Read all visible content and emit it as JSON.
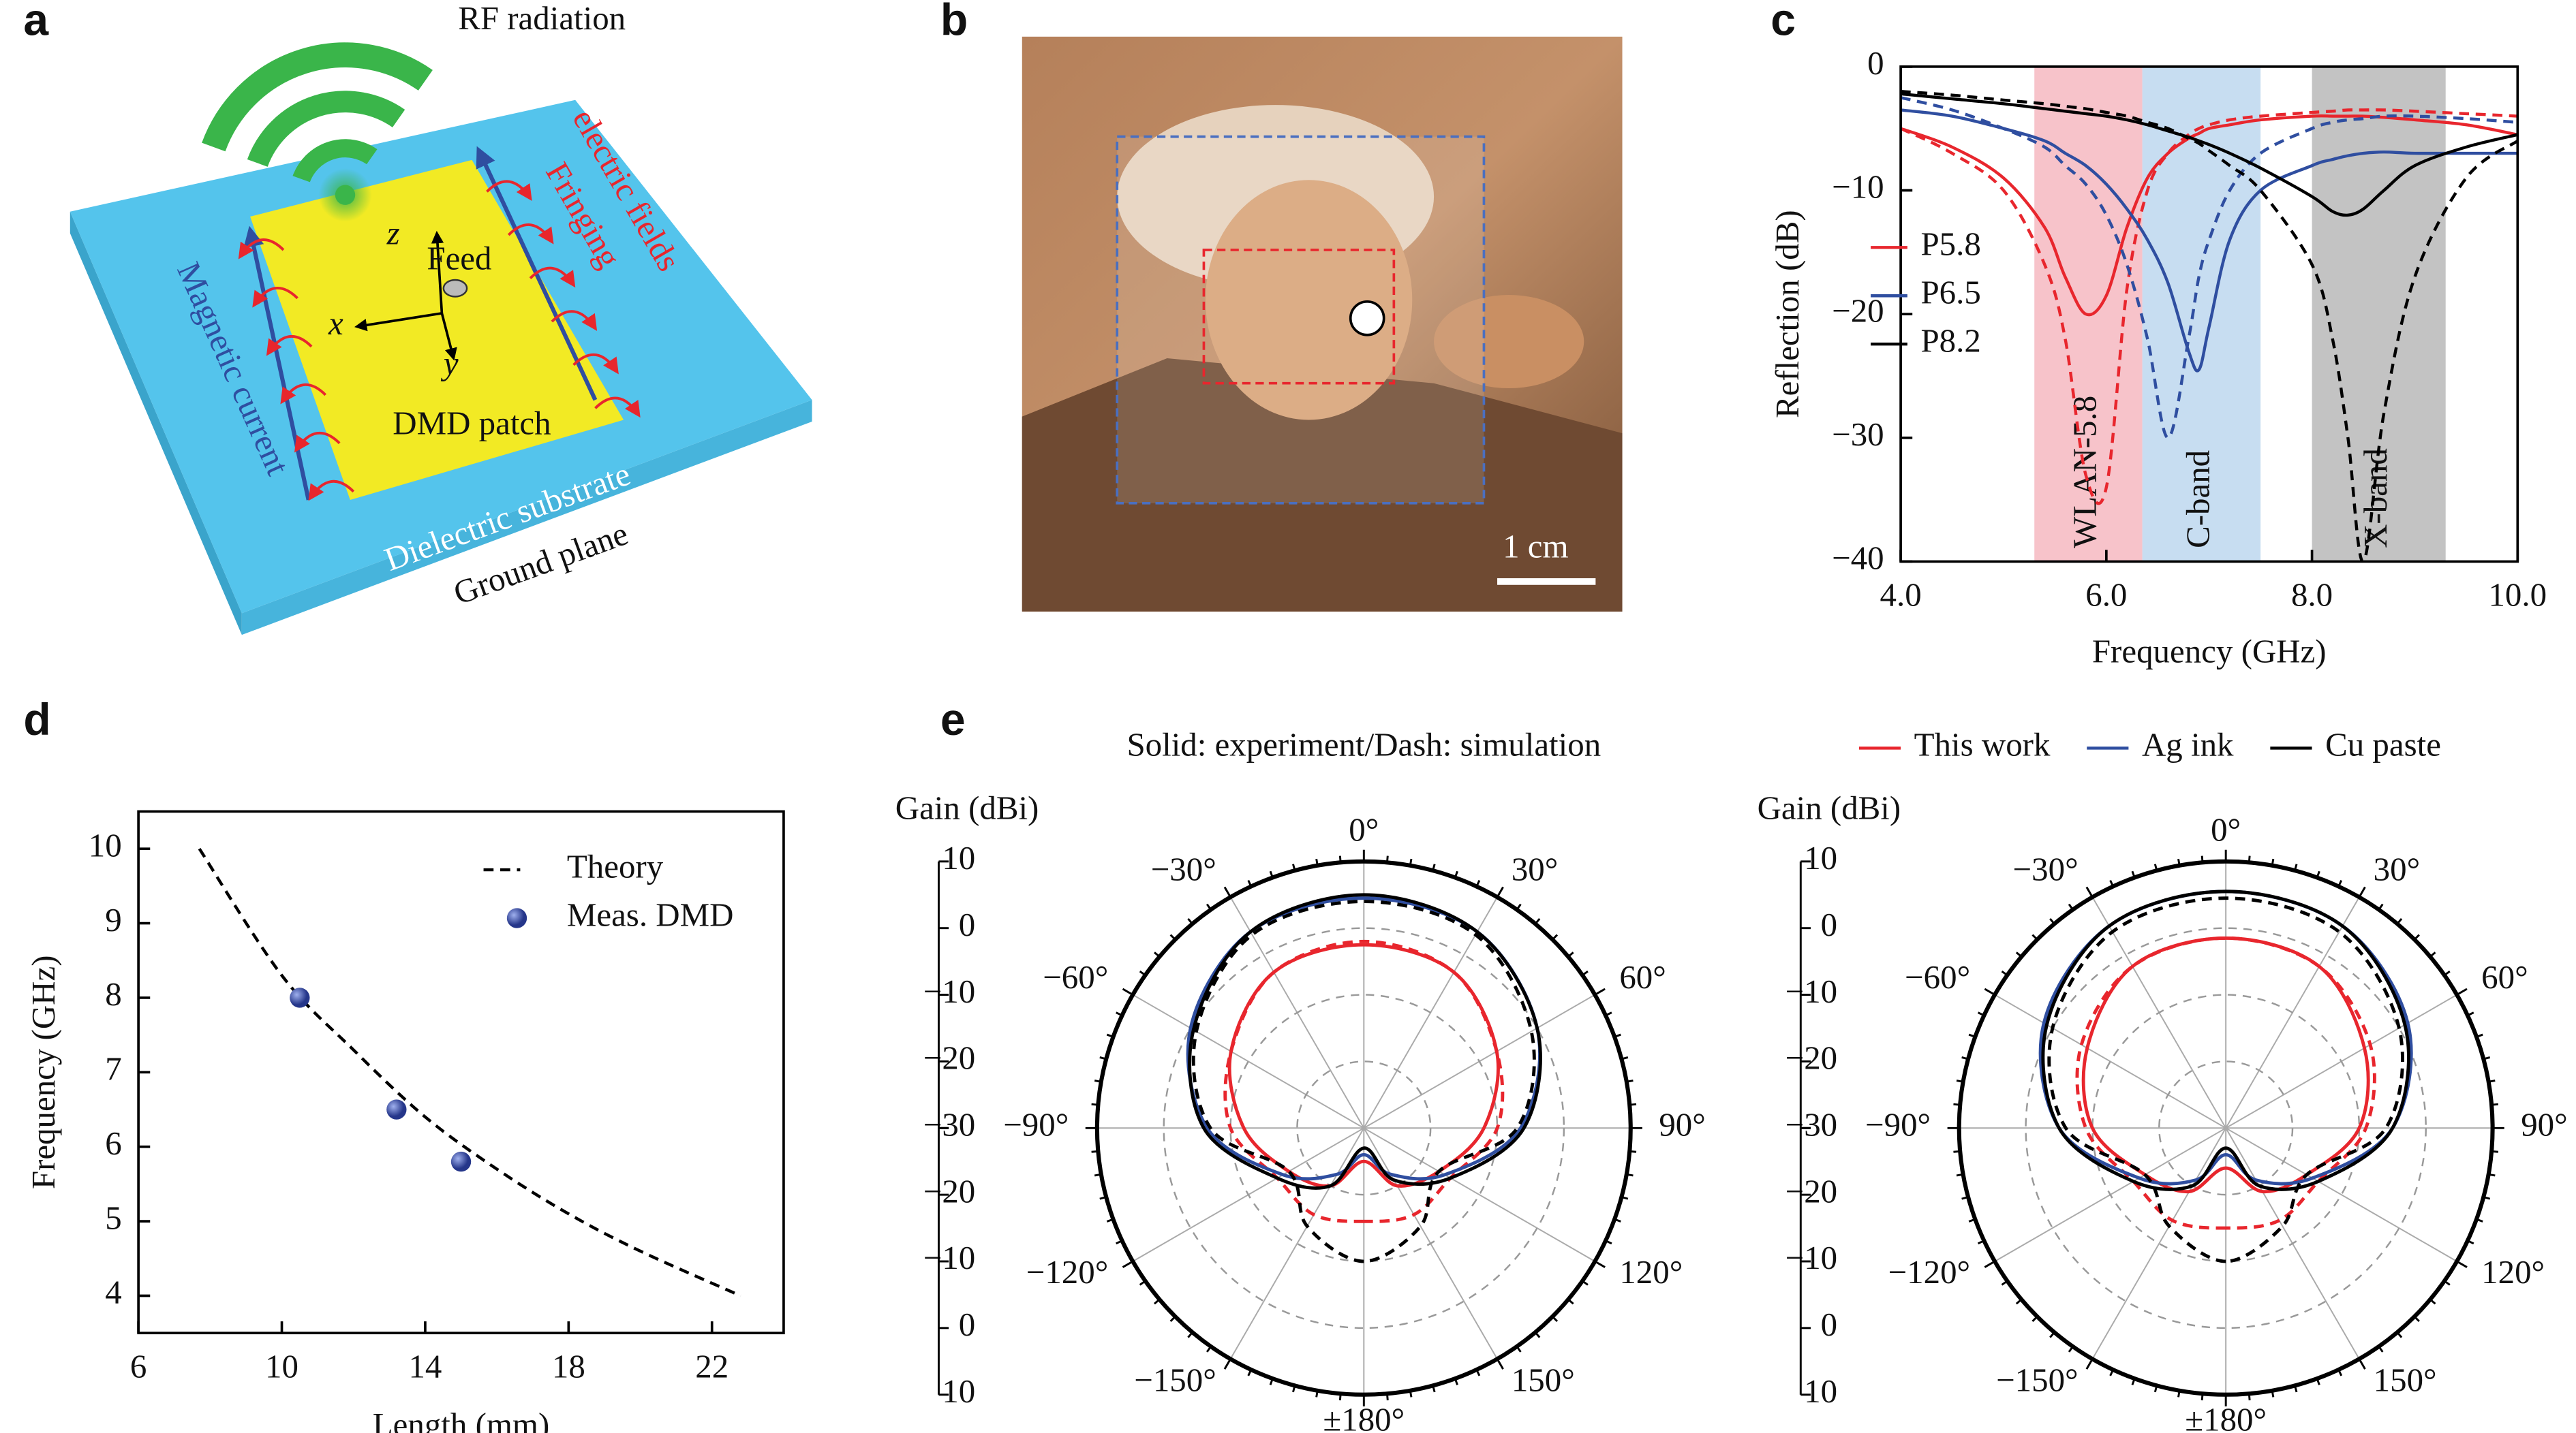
{
  "panel_labels": [
    "a",
    "b",
    "c",
    "d",
    "e"
  ],
  "diagram_a": {
    "rf": "RF radiation",
    "fringing": [
      "Fringing",
      "electric fields"
    ],
    "magnetic": "Magnetic current",
    "feed": "Feed",
    "patch": "DMD patch",
    "substrate": "Dielectric substrate",
    "ground": "Ground plane",
    "axes": [
      "x",
      "y",
      "z"
    ]
  },
  "photo_b": {
    "scale_bar": "1 cm"
  },
  "e_note": "Solid: experiment/Dash: simulation",
  "chart_data": [
    {
      "type": "line",
      "xlabel": "Frequency (GHz)",
      "ylabel": "Reflection (dB)",
      "xlim": [
        4,
        10
      ],
      "ylim": [
        -40,
        0
      ],
      "xticks": [
        {
          "value": 4,
          "label": "4.0"
        },
        {
          "value": 6,
          "label": "6.0"
        },
        {
          "value": 8,
          "label": "8.0"
        },
        {
          "value": 10,
          "label": "10.0"
        }
      ],
      "yticks": [
        {
          "value": -40,
          "label": "−40"
        },
        {
          "value": -30,
          "label": "−30"
        },
        {
          "value": -20,
          "label": "−20"
        },
        {
          "value": -10,
          "label": "−10"
        },
        0
      ],
      "legend": "center left",
      "bands": [
        {
          "label": "WLAN-5.8",
          "range": [
            5.3,
            6.35
          ],
          "color": "#f2a3ae"
        },
        {
          "label": "C-band",
          "range": [
            6.35,
            7.5
          ],
          "color": "#a9cbe9"
        },
        {
          "label": "X-band",
          "range": [
            8.0,
            9.3
          ],
          "color": "#a3a3a3"
        }
      ],
      "x": [
        4.0,
        4.5,
        5.0,
        5.4,
        5.6,
        5.8,
        6.0,
        6.2,
        6.4,
        6.6,
        6.8,
        6.9,
        7.0,
        7.2,
        7.5,
        8.0,
        8.2,
        8.35,
        8.5,
        8.7,
        9.0,
        9.5,
        10.0
      ],
      "series": [
        {
          "name": "P5.8",
          "color": "#e8262d",
          "style": "solid",
          "values": [
            -5,
            -6.5,
            -9,
            -13,
            -17,
            -20,
            -18.5,
            -13,
            -9,
            -7,
            -5.8,
            -5.4,
            -5,
            -4.7,
            -4.3,
            -4,
            -4,
            -4,
            -4,
            -4.1,
            -4.3,
            -4.7,
            -5.5
          ]
        },
        {
          "color": "#e8262d",
          "style": "dashed",
          "values": [
            -5,
            -7,
            -10,
            -16,
            -22,
            -33,
            -34,
            -18,
            -10,
            -7,
            -5.5,
            -5,
            -4.7,
            -4.3,
            -4,
            -3.7,
            -3.6,
            -3.5,
            -3.5,
            -3.5,
            -3.6,
            -3.8,
            -4
          ]
        },
        {
          "name": "P6.5",
          "color": "#2f4ea0",
          "style": "solid",
          "values": [
            -3.5,
            -4,
            -5,
            -6,
            -7,
            -8,
            -9.5,
            -11.5,
            -14,
            -17.5,
            -23,
            -24.5,
            -21,
            -14,
            -10,
            -8,
            -7.5,
            -7.2,
            -7,
            -6.9,
            -7,
            -7,
            -7
          ]
        },
        {
          "color": "#2f4ea0",
          "style": "dashed",
          "values": [
            -2.5,
            -3.5,
            -5,
            -6.5,
            -8,
            -9.5,
            -12,
            -16,
            -22,
            -30,
            -22,
            -17,
            -14,
            -10,
            -7,
            -5,
            -4.5,
            -4.3,
            -4.2,
            -4,
            -4,
            -4.2,
            -4.5
          ]
        },
        {
          "name": "P8.2",
          "color": "#000000",
          "style": "solid",
          "values": [
            -2.2,
            -2.6,
            -3,
            -3.4,
            -3.6,
            -3.8,
            -4,
            -4.3,
            -4.7,
            -5.2,
            -5.7,
            -6,
            -6.3,
            -7,
            -8.2,
            -10.5,
            -11.7,
            -12,
            -11.5,
            -10,
            -8,
            -6.5,
            -5.5
          ]
        },
        {
          "color": "#000000",
          "style": "dashed",
          "values": [
            -2,
            -2.3,
            -2.7,
            -3,
            -3.2,
            -3.4,
            -3.7,
            -4,
            -4.5,
            -5,
            -5.8,
            -6.2,
            -6.8,
            -8,
            -10,
            -16,
            -22,
            -30,
            -40,
            -28,
            -17,
            -9,
            -6
          ]
        }
      ]
    },
    {
      "type": "line",
      "xlabel": "Length (mm)",
      "ylabel": "Frequency (GHz)",
      "xlim": [
        6,
        24
      ],
      "ylim": [
        3.5,
        10.5
      ],
      "xticks": [
        6,
        10,
        14,
        18,
        22
      ],
      "yticks": [
        4,
        5,
        6,
        7,
        8,
        9,
        10
      ],
      "legend": "upper right",
      "series": [
        {
          "name": "Theory",
          "color": "#000000",
          "style": "dashed",
          "x": [
            7.7,
            10,
            12,
            14,
            16,
            18,
            20,
            22.8
          ],
          "values": [
            10,
            8.3,
            7.3,
            6.4,
            5.7,
            5.1,
            4.6,
            4
          ]
        },
        {
          "name": "Meas. DMD",
          "color": "#3a4fb0",
          "style": "markers",
          "x": [
            10.5,
            13.2,
            15
          ],
          "values": [
            8,
            6.5,
            5.8
          ]
        }
      ]
    },
    {
      "type": "polar",
      "r_label": "Gain (dBi)",
      "rlim": [
        -30,
        10
      ],
      "rticks": [
        {
          "value": -30,
          "label": "−30"
        },
        {
          "value": -20,
          "label": "−20"
        },
        {
          "value": -10,
          "label": "−10"
        },
        0,
        10
      ],
      "thetaticks": [
        {
          "value": 0,
          "label": "0°"
        },
        {
          "value": 30,
          "label": "30°"
        },
        {
          "value": 60,
          "label": "60°"
        },
        {
          "value": 90,
          "label": "90°"
        },
        {
          "value": 120,
          "label": "120°"
        },
        {
          "value": 150,
          "label": "150°"
        },
        {
          "value": 180,
          "label": "±180°"
        },
        {
          "value": -150,
          "label": "−150°"
        },
        {
          "value": -120,
          "label": "−120°"
        },
        {
          "value": -90,
          "label": "−90°"
        },
        {
          "value": -60,
          "label": "−60°"
        },
        {
          "value": -30,
          "label": "−30°"
        }
      ],
      "legend": "top right",
      "theta": [
        -180,
        -150,
        -120,
        -90,
        -60,
        -30,
        0,
        30,
        60,
        90,
        120,
        150
      ],
      "series": [
        {
          "name": "This work",
          "color": "#e8262d",
          "style": "solid",
          "values": [
            -25,
            -20,
            -17,
            -12,
            -7,
            -3,
            -2.5,
            -3,
            -7,
            -12,
            -17,
            -20
          ]
        },
        {
          "color": "#e8262d",
          "style": "dashed",
          "values": [
            -16,
            -15,
            -15,
            -10,
            -7,
            -3,
            -2,
            -3,
            -7,
            -10,
            -15,
            -15
          ]
        },
        {
          "name": "Ag ink",
          "color": "#2f4ea0",
          "style": "solid",
          "values": [
            -26,
            -22,
            -16,
            -6.5,
            0,
            4,
            4.5,
            4,
            0,
            -6.5,
            -16,
            -22
          ]
        },
        {
          "name": "Cu paste",
          "color": "#000000",
          "style": "solid",
          "values": [
            -27,
            -20,
            -15,
            -6,
            -0.5,
            4,
            5,
            4,
            0,
            -6,
            -15,
            -21
          ]
        },
        {
          "color": "#000000",
          "style": "dashed",
          "values": [
            -10,
            -13,
            -17,
            -7,
            -1,
            3.5,
            4,
            3.5,
            -1,
            -7,
            -17,
            -13
          ]
        }
      ]
    },
    {
      "type": "polar",
      "r_label": "Gain (dBi)",
      "rlim": [
        -30,
        10
      ],
      "rticks": [
        {
          "value": -30,
          "label": "−30"
        },
        {
          "value": -20,
          "label": "−20"
        },
        {
          "value": -10,
          "label": "−10"
        },
        0,
        10
      ],
      "thetaticks": [
        {
          "value": 0,
          "label": "0°"
        },
        {
          "value": 30,
          "label": "30°"
        },
        {
          "value": 60,
          "label": "60°"
        },
        {
          "value": 90,
          "label": "90°"
        },
        {
          "value": 120,
          "label": "120°"
        },
        {
          "value": 150,
          "label": "150°"
        },
        {
          "value": 180,
          "label": "±180°"
        },
        {
          "value": -150,
          "label": "−150°"
        },
        {
          "value": -120,
          "label": "−120°"
        },
        {
          "value": -90,
          "label": "−90°"
        },
        {
          "value": -60,
          "label": "−60°"
        },
        {
          "value": -30,
          "label": "−30°"
        }
      ],
      "theta": [
        -180,
        -150,
        -120,
        -90,
        -60,
        -30,
        0,
        30,
        60,
        90,
        120,
        150
      ],
      "series": [
        {
          "color": "#e8262d",
          "style": "solid",
          "values": [
            -24,
            -19,
            -16,
            -10,
            -6,
            -2,
            -1.5,
            -2,
            -6,
            -10,
            -16,
            -19
          ]
        },
        {
          "color": "#e8262d",
          "style": "dashed",
          "values": [
            -15,
            -14,
            -14,
            -9,
            -5,
            -2,
            -1.5,
            -2,
            -5,
            -9,
            -14,
            -14
          ]
        },
        {
          "color": "#2f4ea0",
          "style": "solid",
          "values": [
            -26,
            -21,
            -15,
            -5,
            1.5,
            5,
            5.5,
            5,
            1.5,
            -5,
            -15,
            -21
          ]
        },
        {
          "color": "#000000",
          "style": "solid",
          "values": [
            -27,
            -20,
            -14,
            -5,
            1,
            5,
            5.5,
            5,
            1,
            -5,
            -14,
            -20
          ]
        },
        {
          "color": "#000000",
          "style": "dashed",
          "values": [
            -10,
            -13,
            -16,
            -6,
            0,
            4,
            4.5,
            4,
            0,
            -6,
            -16,
            -13
          ]
        }
      ]
    }
  ]
}
